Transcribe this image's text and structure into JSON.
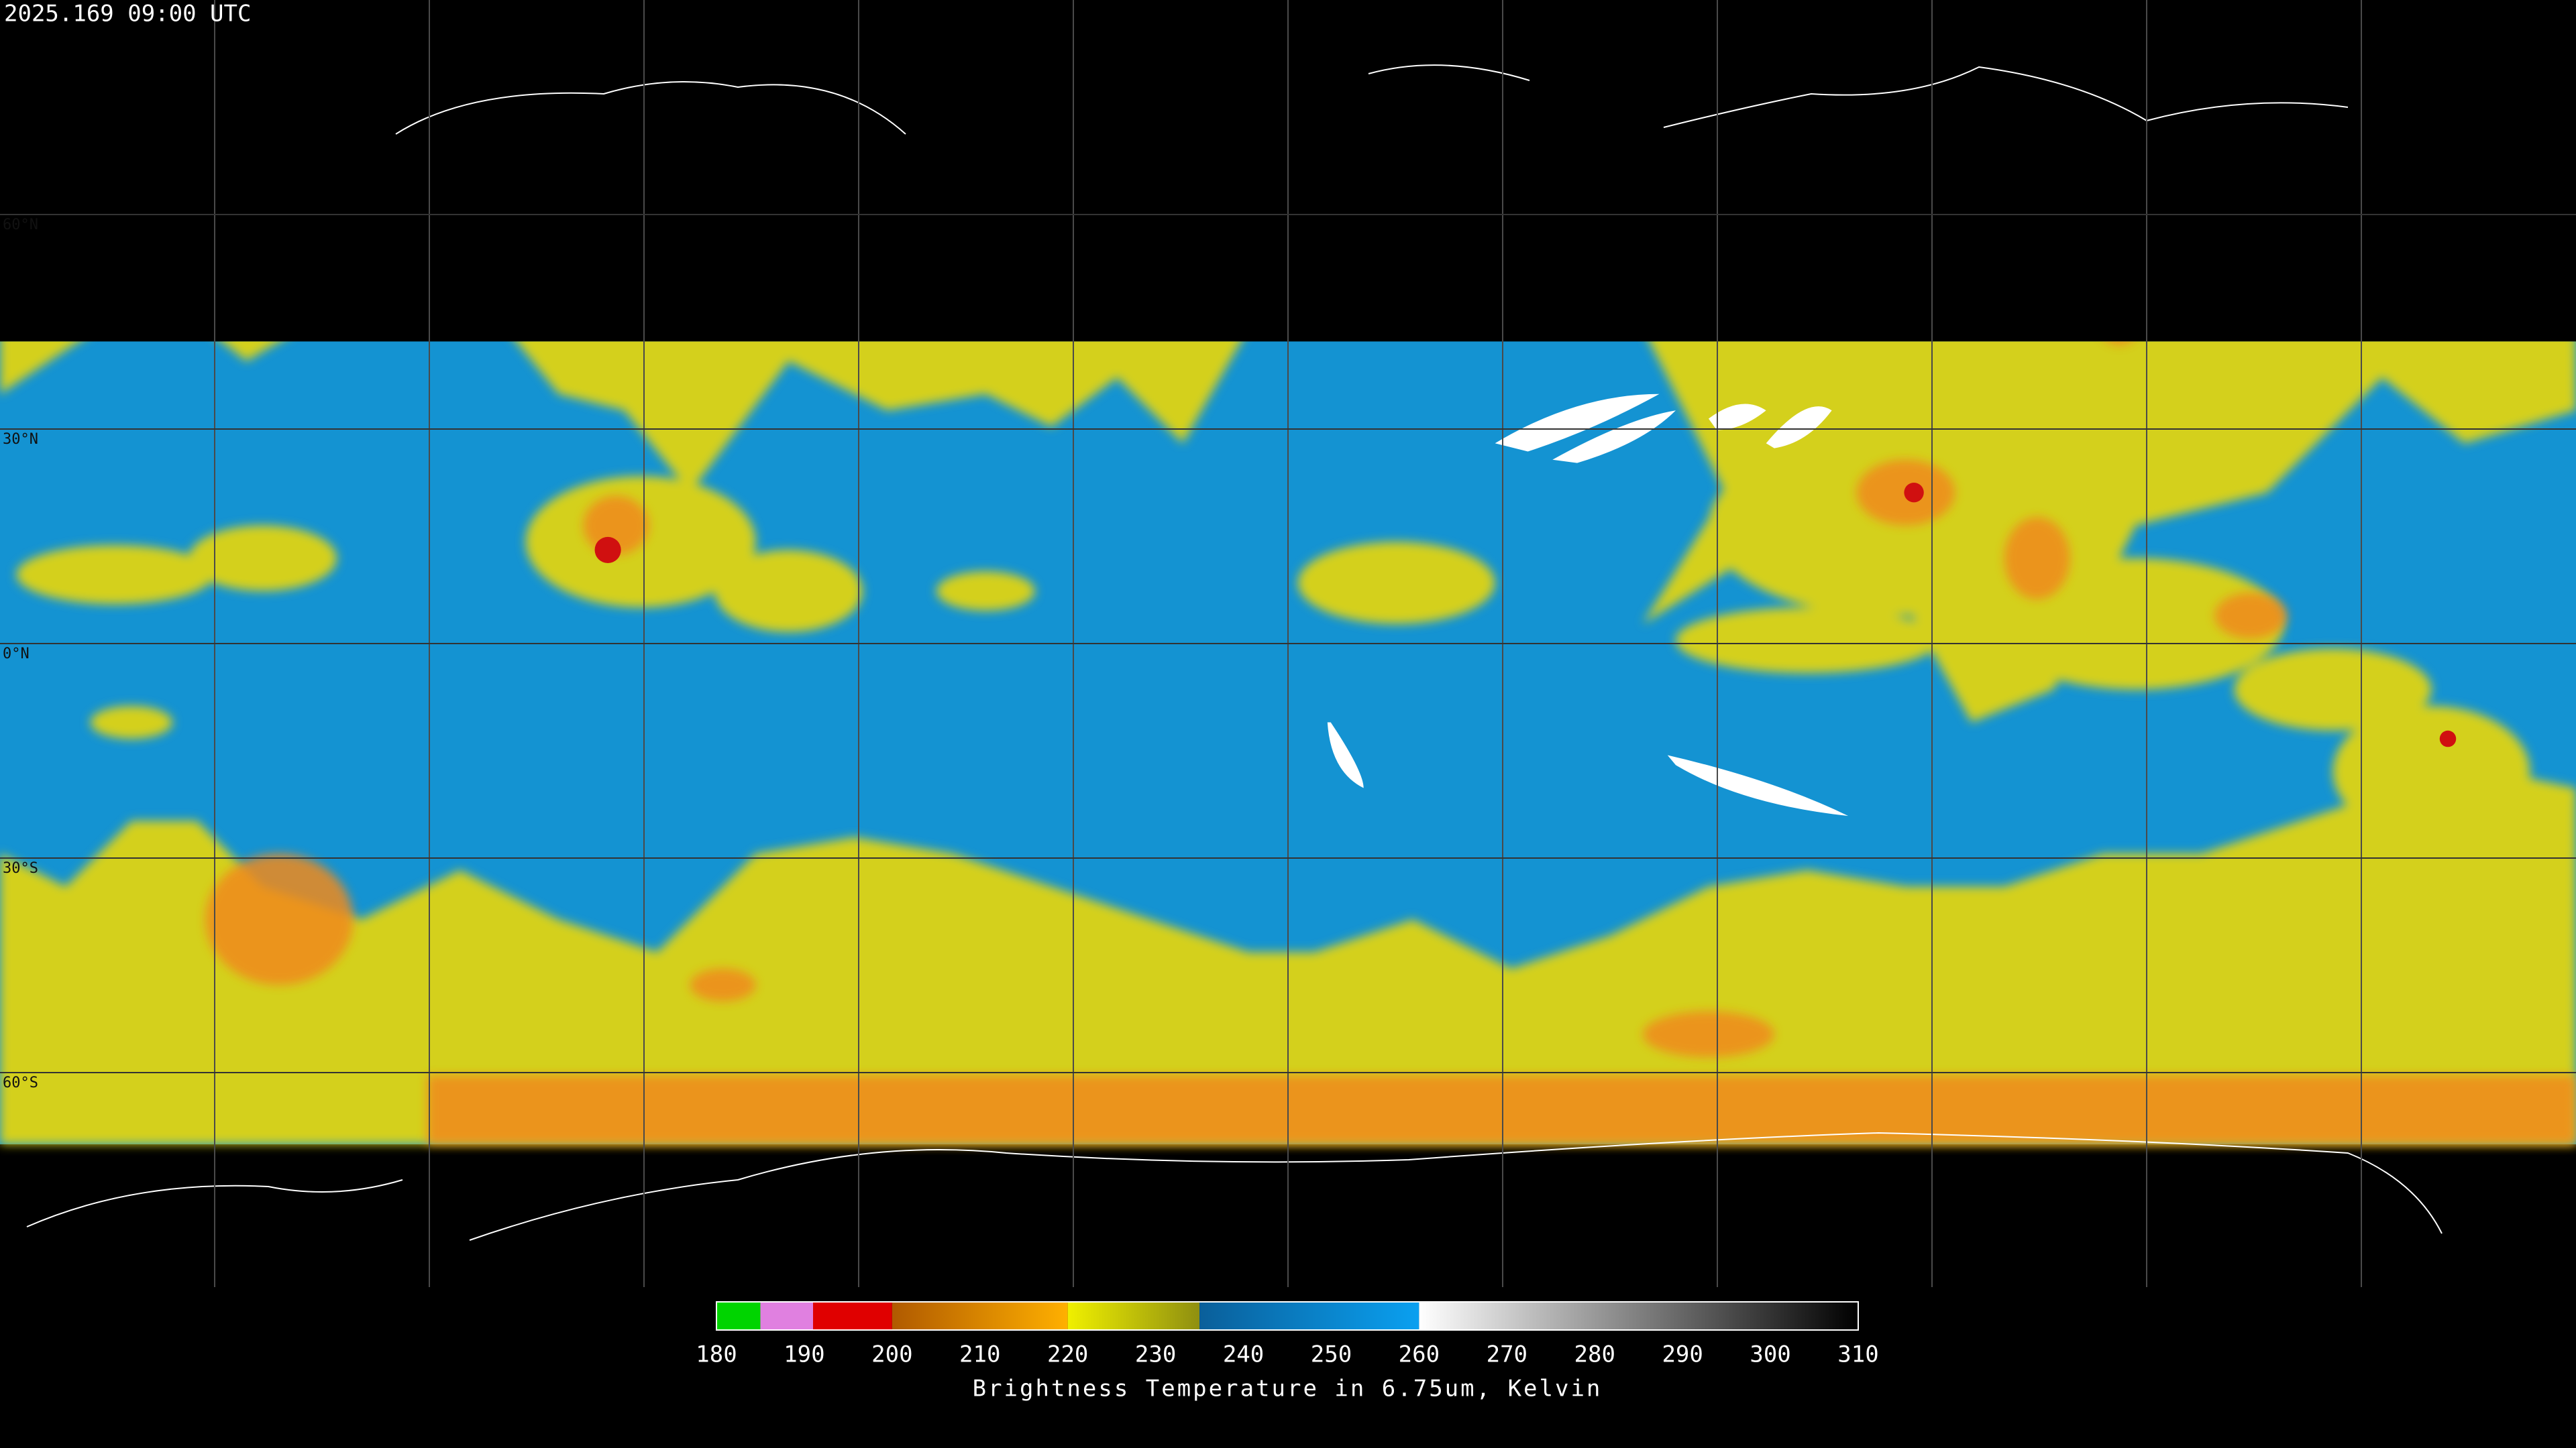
{
  "timestamp": "2025.169 09:00 UTC",
  "map": {
    "lonlim": [
      -180,
      180
    ],
    "latlim": [
      90,
      -90
    ],
    "graticule": {
      "lon": [
        -150,
        -120,
        -90,
        -60,
        -30,
        0,
        30,
        60,
        90,
        120,
        150
      ],
      "lat": [
        60,
        30,
        0,
        -30,
        -60
      ]
    },
    "lat_labels": [
      "60°N",
      "30°N",
      "0°N",
      "30°S",
      "60°S"
    ]
  },
  "colorbar": {
    "title": "Brightness Temperature in 6.75um, Kelvin",
    "range": [
      180,
      310
    ],
    "ticks": [
      180,
      190,
      200,
      210,
      220,
      230,
      240,
      250,
      260,
      270,
      280,
      290,
      300,
      310
    ],
    "segments": [
      {
        "from": 180,
        "to": 185,
        "colors": [
          "#00d400",
          "#00d400"
        ]
      },
      {
        "from": 185,
        "to": 191,
        "colors": [
          "#e080e0",
          "#e080e0"
        ]
      },
      {
        "from": 191,
        "to": 200,
        "colors": [
          "#e00000",
          "#e00000"
        ]
      },
      {
        "from": 200,
        "to": 220,
        "colors": [
          "#b05a00",
          "#ffb000"
        ]
      },
      {
        "from": 220,
        "to": 235,
        "colors": [
          "#f0f000",
          "#8f8f10"
        ]
      },
      {
        "from": 235,
        "to": 260,
        "colors": [
          "#0a5f9a",
          "#0aa0f0"
        ]
      },
      {
        "from": 260,
        "to": 310,
        "colors": [
          "#ffffff",
          "#000000"
        ]
      }
    ]
  }
}
